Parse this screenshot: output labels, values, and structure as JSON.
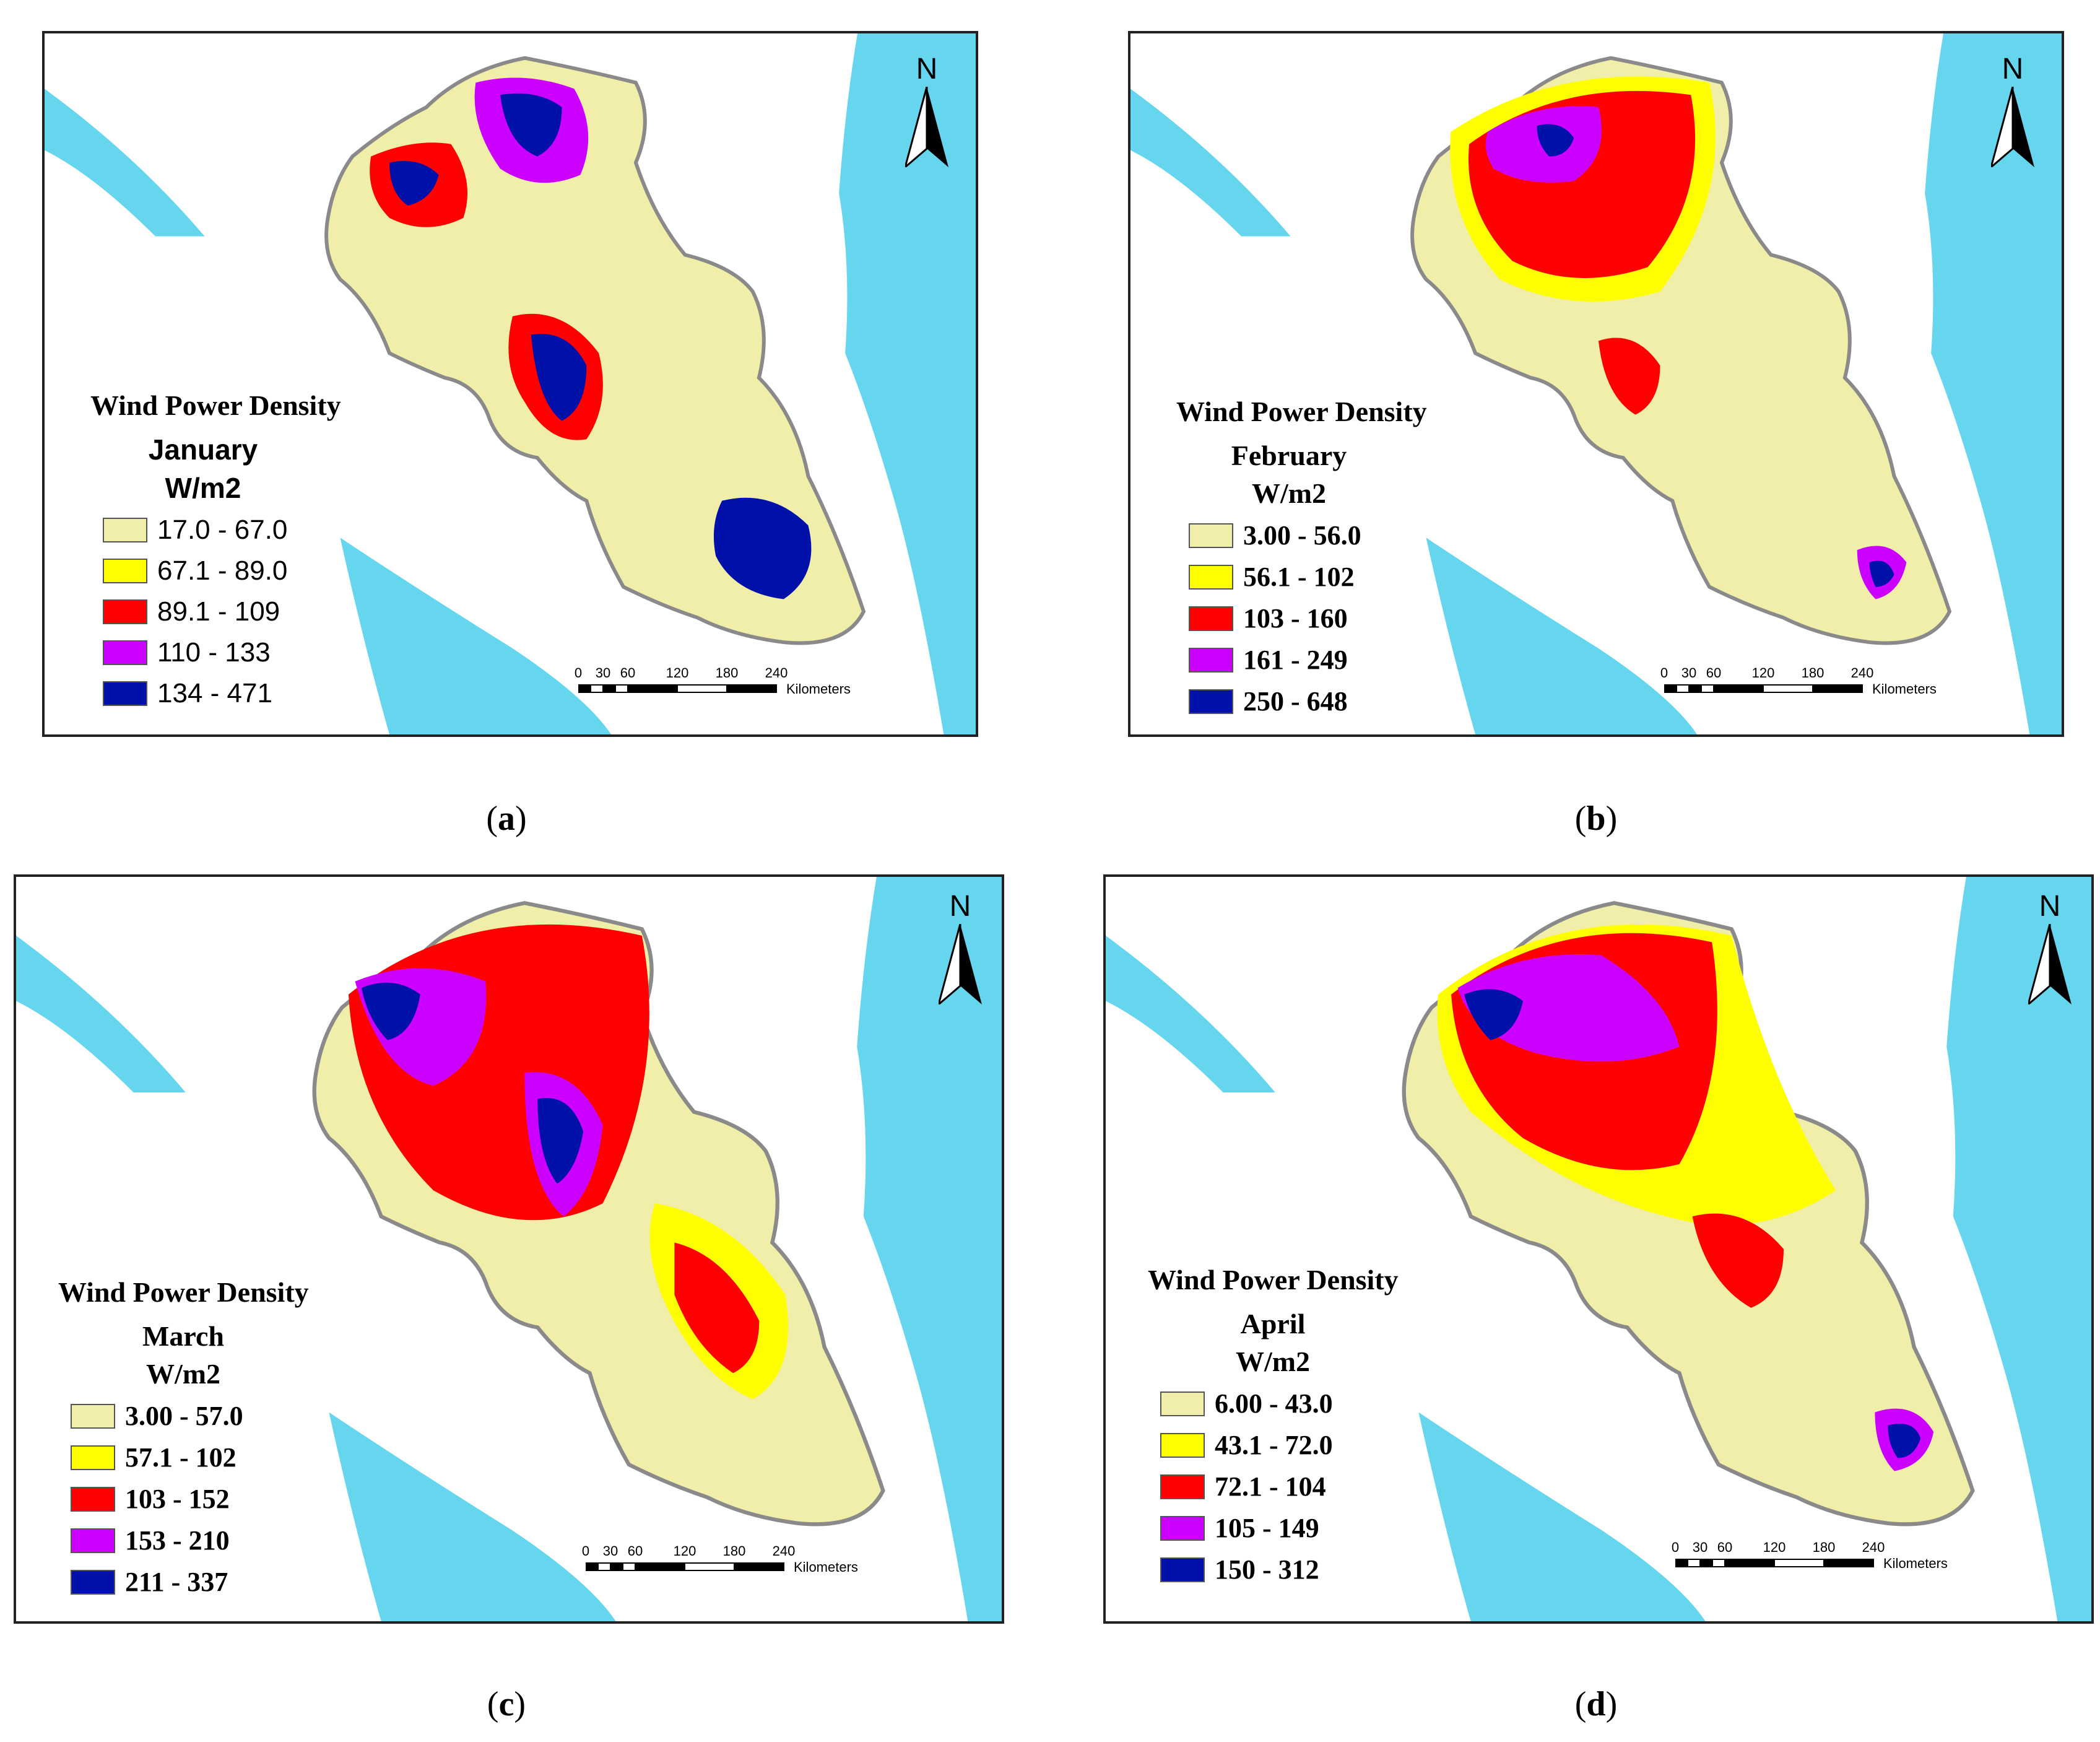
{
  "panels": [
    {
      "id": "a",
      "caption_letter": "a",
      "legend_title": "Wind Power Density",
      "month": "January",
      "unit": "W/m2",
      "classes": [
        {
          "range": "17.0 - 67.0",
          "color": "#f1eeaa"
        },
        {
          "range": "67.1 - 89.0",
          "color": "#ffff00"
        },
        {
          "range": "89.1 - 109",
          "color": "#ff0000"
        },
        {
          "range": "110 - 133",
          "color": "#cc00ff"
        },
        {
          "range": "134 - 471",
          "color": "#0011aa"
        }
      ]
    },
    {
      "id": "b",
      "caption_letter": "b",
      "legend_title": "Wind Power Density",
      "month": "February",
      "unit": "W/m2",
      "classes": [
        {
          "range": "3.00 - 56.0",
          "color": "#f1eeaa"
        },
        {
          "range": "56.1 - 102",
          "color": "#ffff00"
        },
        {
          "range": "103 - 160",
          "color": "#ff0000"
        },
        {
          "range": "161 - 249",
          "color": "#cc00ff"
        },
        {
          "range": "250 - 648",
          "color": "#0011aa"
        }
      ]
    },
    {
      "id": "c",
      "caption_letter": "c",
      "legend_title": "Wind Power Density",
      "month": "March",
      "unit": "W/m2",
      "classes": [
        {
          "range": "3.00 - 57.0",
          "color": "#f1eeaa"
        },
        {
          "range": "57.1 - 102",
          "color": "#ffff00"
        },
        {
          "range": "103 - 152",
          "color": "#ff0000"
        },
        {
          "range": "153 - 210",
          "color": "#cc00ff"
        },
        {
          "range": "211 - 337",
          "color": "#0011aa"
        }
      ]
    },
    {
      "id": "d",
      "caption_letter": "d",
      "legend_title": "Wind Power Density",
      "month": "April",
      "unit": "W/m2",
      "classes": [
        {
          "range": "6.00 - 43.0",
          "color": "#f1eeaa"
        },
        {
          "range": "43.1 - 72.0",
          "color": "#ffff00"
        },
        {
          "range": "72.1 - 104",
          "color": "#ff0000"
        },
        {
          "range": "105 - 149",
          "color": "#cc00ff"
        },
        {
          "range": "150 - 312",
          "color": "#0011aa"
        }
      ]
    }
  ],
  "north_label": "N",
  "scale_bar": {
    "ticks": [
      "0",
      "30",
      "60",
      "120",
      "180",
      "240"
    ],
    "unit": "Kilometers"
  },
  "colors": {
    "sea": "#66d6ee",
    "land": "#ffffff",
    "boundary": "#8a8a8a"
  }
}
